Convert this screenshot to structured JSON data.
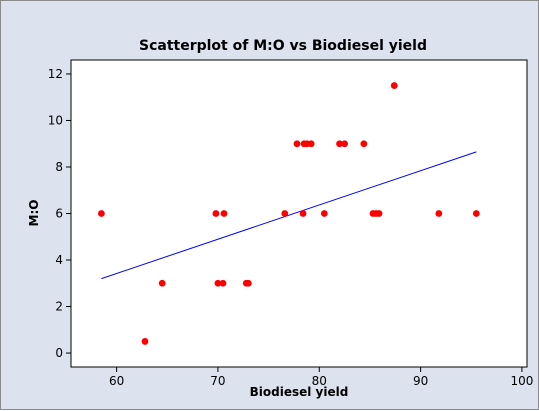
{
  "chart_data": {
    "type": "scatter",
    "title": "Scatterplot of M:O vs Biodiesel yield",
    "xlabel": "Biodiesel yield",
    "ylabel": "M:O",
    "xlim": [
      55.5,
      100.5
    ],
    "ylim": [
      -0.6,
      12.6
    ],
    "xticks": [
      60,
      70,
      80,
      90,
      100
    ],
    "yticks": [
      0,
      2,
      4,
      6,
      8,
      10,
      12
    ],
    "grid": false,
    "legend": "none",
    "series": [
      {
        "marker_color": "#ff0000",
        "x": [
          58.5,
          62.8,
          64.5,
          69.8,
          70.0,
          70.5,
          70.6,
          72.8,
          73.0,
          76.6,
          77.8,
          78.4,
          78.5,
          78.8,
          79.2,
          80.5,
          82.0,
          82.5,
          84.4,
          85.3,
          85.6,
          85.9,
          87.4,
          91.8,
          95.5
        ],
        "y": [
          6,
          0.5,
          3,
          6,
          3,
          3,
          6,
          3,
          3,
          6,
          9,
          6,
          9,
          9,
          9,
          6,
          9,
          9,
          9,
          6,
          6,
          6,
          11.5,
          6,
          6
        ]
      }
    ],
    "fit_line": {
      "color": "#0000ff",
      "x": [
        58.5,
        95.5
      ],
      "y": [
        3.2,
        8.65
      ]
    }
  },
  "colors": {
    "frame_background": "#dce3ee",
    "plot_background": "#ffffff",
    "points": "#ff0000",
    "fit_line": "#0000ff"
  }
}
